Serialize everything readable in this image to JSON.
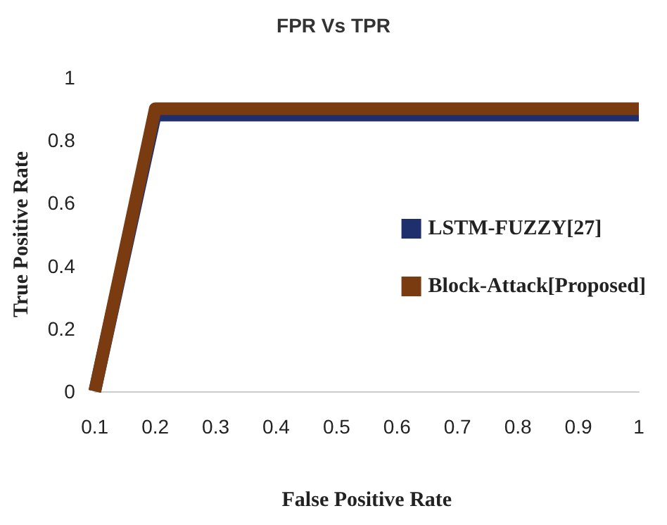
{
  "chart_data": {
    "type": "line",
    "title": "FPR Vs TPR",
    "xlabel": "False Positive Rate",
    "ylabel": "True Positive Rate",
    "categories": [
      "0.1",
      "0.2",
      "0.3",
      "0.4",
      "0.5",
      "0.6",
      "0.7",
      "0.8",
      "0.9",
      "1"
    ],
    "series": [
      {
        "name": "LSTM-FUZZY[27]",
        "color": "#1f2f6e",
        "values": [
          0,
          0.88,
          0.88,
          0.88,
          0.88,
          0.88,
          0.88,
          0.88,
          0.88,
          0.88
        ]
      },
      {
        "name": "Block-Attack[Proposed]",
        "color": "#7a3b10",
        "values": [
          0,
          0.9,
          0.9,
          0.9,
          0.9,
          0.9,
          0.9,
          0.9,
          0.9,
          0.9
        ]
      }
    ],
    "ylim": [
      0,
      1
    ],
    "yticks": [
      0,
      0.2,
      0.4,
      0.6,
      0.8,
      1
    ],
    "grid": false,
    "legend": "right",
    "marker": "none",
    "line_style": "solid"
  }
}
